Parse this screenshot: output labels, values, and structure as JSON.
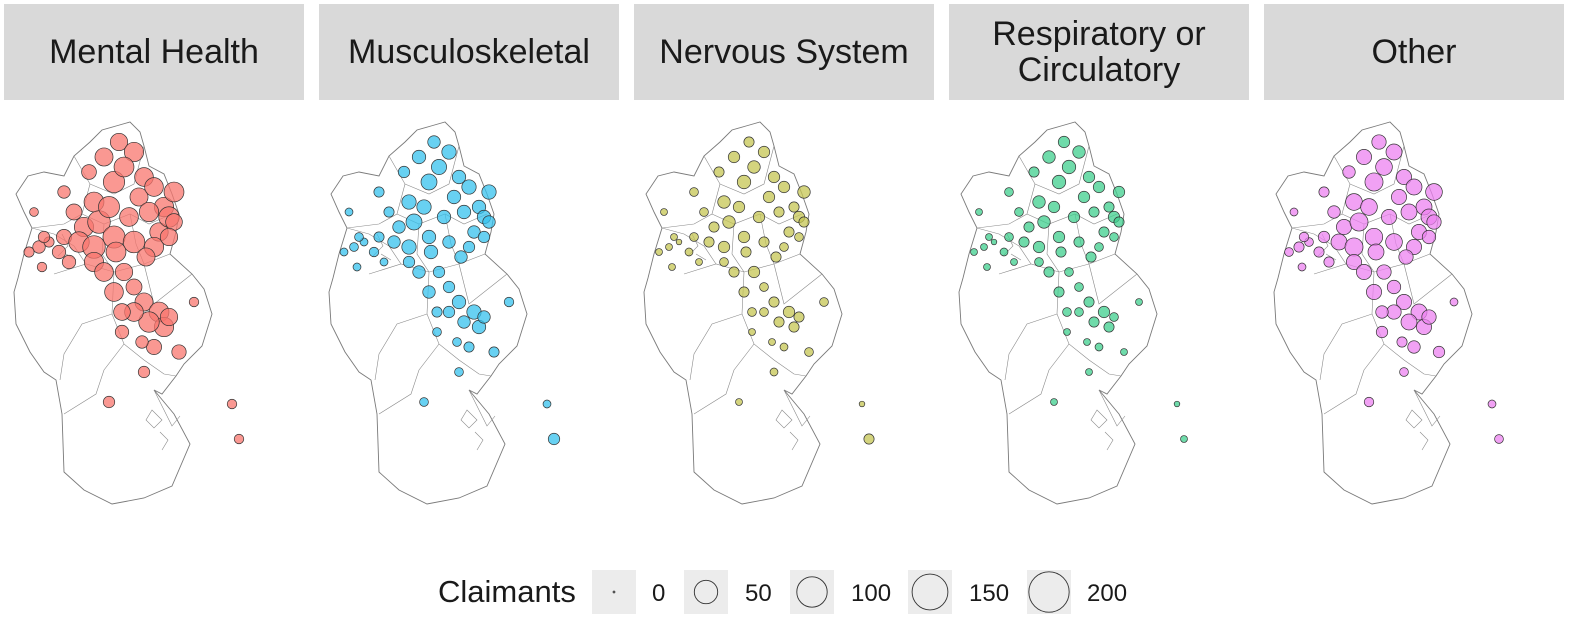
{
  "panels": [
    {
      "title_lines": [
        "Mental Health"
      ],
      "color": "#f8766d"
    },
    {
      "title_lines": [
        "Musculoskeletal"
      ],
      "color": "#35c2ee"
    },
    {
      "title_lines": [
        "Nervous System"
      ],
      "color": "#c6c653"
    },
    {
      "title_lines": [
        "Respiratory or",
        "Circulatory"
      ],
      "color": "#3fcf8e"
    },
    {
      "title_lines": [
        "Other"
      ],
      "color": "#ec82f0"
    }
  ],
  "legend": {
    "title": "Claimants",
    "entries": [
      {
        "value": 0,
        "label": "0"
      },
      {
        "value": 50,
        "label": "50"
      },
      {
        "value": 100,
        "label": "100"
      },
      {
        "value": 150,
        "label": "150"
      },
      {
        "value": 200,
        "label": "200"
      }
    ]
  }
}
